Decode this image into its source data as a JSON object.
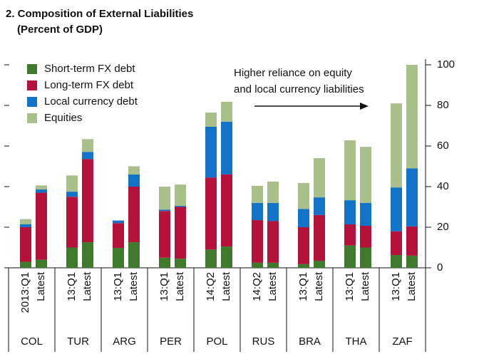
{
  "chart_data": {
    "type": "stacked_bar",
    "title": "2. Composition of External Liabilities",
    "subtitle": "(Percent of GDP)",
    "annotation": [
      "Higher reliance on equity",
      "and local currency liabilities"
    ],
    "groups": [
      "COL",
      "TUR",
      "ARG",
      "PER",
      "POL",
      "RUS",
      "BRA",
      "THA",
      "ZAF"
    ],
    "categories": [
      "2013:Q1",
      "Latest",
      "13:Q1",
      "Latest",
      "13:Q1",
      "Latest",
      "13:Q1",
      "Latest",
      "14:Q2",
      "Latest",
      "14:Q2",
      "Latest",
      "13:Q1",
      "Latest",
      "13:Q1",
      "Latest",
      "13:Q1",
      "Latest"
    ],
    "series": [
      {
        "name": "Short-term FX debt",
        "color": "#3f7a2c",
        "values": [
          3,
          4,
          10,
          12.6,
          9.8,
          12.6,
          5,
          4.5,
          9,
          10.5,
          2.5,
          2.5,
          1.8,
          3.5,
          11,
          10,
          6.3,
          6
        ]
      },
      {
        "name": "Long-term FX debt",
        "color": "#b5123b",
        "values": [
          17,
          33,
          25,
          41,
          12.2,
          27.4,
          23,
          25.5,
          35.5,
          35.5,
          21,
          20.5,
          18.2,
          22.5,
          10.4,
          10.7,
          11.7,
          14.4
        ]
      },
      {
        "name": "Local currency debt",
        "color": "#1273c8",
        "values": [
          1.5,
          1.6,
          2.5,
          3.5,
          1.3,
          6,
          0.7,
          0.5,
          25,
          26,
          8.5,
          9,
          9,
          8.7,
          11.9,
          11.3,
          21.6,
          28.6
        ]
      },
      {
        "name": "Equities",
        "color": "#a9c08a",
        "values": [
          2.5,
          2,
          8,
          6.3,
          0,
          4,
          11.3,
          10.5,
          7,
          9.8,
          8.4,
          10.5,
          12.8,
          19.3,
          29.5,
          27.6,
          41.4,
          51
        ]
      }
    ],
    "ylim": [
      0,
      100
    ],
    "yticks": [
      0,
      20,
      40,
      60,
      80,
      100
    ]
  }
}
